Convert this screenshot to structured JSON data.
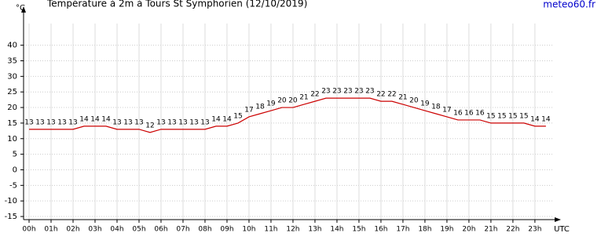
{
  "chart_data": {
    "type": "line",
    "title": "Température à 2m à Tours St Symphorien (12/10/2019)",
    "source": "meteo60.fr",
    "y_label": "°C",
    "x_label": "UTC",
    "x": [
      0,
      0.5,
      1,
      1.5,
      2,
      2.5,
      3,
      3.5,
      4,
      4.5,
      5,
      5.5,
      6,
      6.5,
      7,
      7.5,
      8,
      8.5,
      9,
      9.5,
      10,
      10.5,
      11,
      11.5,
      12,
      12.5,
      13,
      13.5,
      14,
      14.5,
      15,
      15.5,
      16,
      16.5,
      17,
      17.5,
      18,
      18.5,
      19,
      19.5,
      20,
      20.5,
      21,
      21.5,
      22,
      22.5,
      23,
      23.5
    ],
    "series": [
      {
        "name": "Température",
        "color": "#cc0000",
        "values": [
          13,
          13,
          13,
          13,
          13,
          14,
          14,
          14,
          13,
          13,
          13,
          12,
          13,
          13,
          13,
          13,
          13,
          14,
          14,
          15,
          17,
          18,
          19,
          20,
          20,
          21,
          22,
          23,
          23,
          23,
          23,
          23,
          22,
          22,
          21,
          20,
          19,
          18,
          17,
          16,
          16,
          16,
          15,
          15,
          15,
          15,
          14,
          14
        ]
      }
    ],
    "xlim": [
      -0.25,
      24.04
    ],
    "ylim": [
      -16,
      52
    ],
    "yticks": [
      -15,
      -10,
      -5,
      0,
      5,
      10,
      15,
      20,
      25,
      30,
      35,
      40
    ],
    "xticks": [
      {
        "value": 0,
        "label": "00h"
      },
      {
        "value": 1,
        "label": "01h"
      },
      {
        "value": 2,
        "label": "02h"
      },
      {
        "value": 3,
        "label": "03h"
      },
      {
        "value": 4,
        "label": "04h"
      },
      {
        "value": 5,
        "label": "05h"
      },
      {
        "value": 6,
        "label": "06h"
      },
      {
        "value": 7,
        "label": "07h"
      },
      {
        "value": 8,
        "label": "08h"
      },
      {
        "value": 9,
        "label": "09h"
      },
      {
        "value": 10,
        "label": "10h"
      },
      {
        "value": 11,
        "label": "11h"
      },
      {
        "value": 12,
        "label": "12h"
      },
      {
        "value": 13,
        "label": "13h"
      },
      {
        "value": 14,
        "label": "14h"
      },
      {
        "value": 15,
        "label": "15h"
      },
      {
        "value": 16,
        "label": "16h"
      },
      {
        "value": 17,
        "label": "17h"
      },
      {
        "value": 18,
        "label": "18h"
      },
      {
        "value": 19,
        "label": "19h"
      },
      {
        "value": 20,
        "label": "20h"
      },
      {
        "value": 21,
        "label": "21h"
      },
      {
        "value": 22,
        "label": "22h"
      },
      {
        "value": 23,
        "label": "23h"
      }
    ],
    "grid": true
  }
}
